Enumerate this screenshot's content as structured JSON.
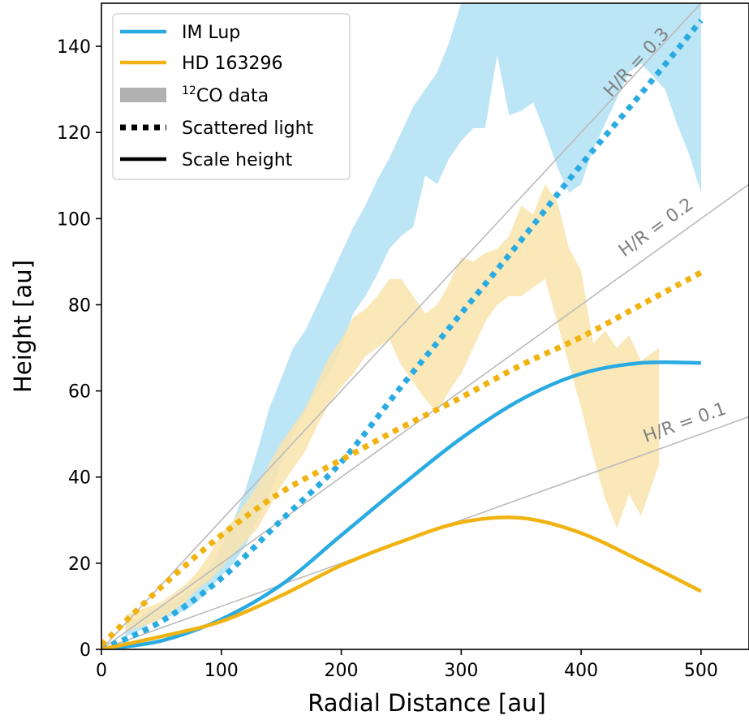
{
  "chart_data": {
    "type": "line",
    "xlabel": "Radial Distance [au]",
    "ylabel": "Height [au]",
    "xlim": [
      0,
      540
    ],
    "ylim": [
      0,
      150
    ],
    "xticks": [
      0,
      100,
      200,
      300,
      400,
      500
    ],
    "yticks": [
      0,
      20,
      40,
      60,
      80,
      100,
      120,
      140
    ],
    "grid": false,
    "legend_position": "upper-left",
    "colors": {
      "im_lup": "#29abe2",
      "hd163296": "#f0b311",
      "im_lup_band": "#b8e4f5",
      "hd_band": "#f9e4ad",
      "reference": "#bbbbbb",
      "reference_text": "#808080"
    },
    "legend": [
      {
        "label": "IM Lup",
        "kind": "line",
        "color": "#29abe2"
      },
      {
        "label": "HD 163296",
        "kind": "line",
        "color": "#f0b311"
      },
      {
        "label_sup": "12",
        "label": "CO data",
        "kind": "patch",
        "color": "#b0b0b0"
      },
      {
        "label": "Scattered light",
        "kind": "dotted",
        "color": "#000000"
      },
      {
        "label": "Scale height",
        "kind": "solid",
        "color": "#000000"
      }
    ],
    "reference_lines": [
      {
        "slope": 0.3,
        "label": "H/R = 0.3",
        "label_x": 425,
        "label_y": 128
      },
      {
        "slope": 0.2,
        "label": "H/R = 0.2",
        "label_x": 436,
        "label_y": 91
      },
      {
        "slope": 0.1,
        "label": "H/R = 0.1",
        "label_x": 454,
        "label_y": 48
      }
    ],
    "series": [
      {
        "name": "IM Lup",
        "kind": "scattered_light",
        "style": "dotted",
        "x": [
          0,
          50,
          100,
          150,
          200,
          250,
          300,
          350,
          400,
          450,
          500
        ],
        "y": [
          0,
          6.5,
          16.5,
          30,
          43.5,
          61,
          78,
          95,
          112.5,
          129,
          146
        ]
      },
      {
        "name": "HD 163296",
        "kind": "scattered_light",
        "style": "dotted",
        "x": [
          0,
          50,
          100,
          150,
          200,
          250,
          300,
          350,
          400,
          450,
          500
        ],
        "y": [
          1,
          14.5,
          26.5,
          36.5,
          44,
          51.5,
          58.5,
          66,
          72.5,
          80,
          87.5
        ]
      },
      {
        "name": "IM Lup",
        "kind": "scale_height",
        "style": "solid",
        "x": [
          0,
          50,
          100,
          150,
          200,
          250,
          300,
          350,
          400,
          450,
          500
        ],
        "y": [
          0,
          2,
          7,
          15,
          26.5,
          38,
          49,
          58,
          64,
          66.5,
          66.5
        ]
      },
      {
        "name": "HD 163296",
        "kind": "scale_height",
        "style": "solid",
        "x": [
          0,
          50,
          100,
          150,
          200,
          250,
          300,
          350,
          400,
          450,
          500
        ],
        "y": [
          0,
          3,
          6.5,
          12.5,
          19.5,
          25,
          29.5,
          30.5,
          27,
          20.5,
          13.5
        ]
      }
    ],
    "bands": [
      {
        "name": "IM Lup 12CO",
        "x": [
          20,
          30,
          40,
          50,
          60,
          70,
          80,
          90,
          100,
          110,
          120,
          130,
          140,
          150,
          160,
          170,
          180,
          190,
          200,
          210,
          220,
          230,
          240,
          250,
          260,
          270,
          280,
          290,
          300,
          310,
          320,
          330,
          340,
          350,
          360,
          370,
          380,
          390,
          400,
          410,
          420,
          430,
          440,
          450,
          460,
          470,
          480,
          490,
          500
        ],
        "lower": [
          3,
          4,
          6,
          7,
          8,
          9,
          11,
          14,
          17,
          20,
          24,
          30,
          36,
          43,
          50,
          55,
          60,
          64,
          70,
          78,
          82,
          87,
          93,
          96,
          98,
          110,
          108,
          114,
          118,
          121,
          121,
          138,
          124,
          125,
          127,
          120,
          112,
          106,
          108,
          116,
          122,
          128,
          134,
          136,
          133,
          130,
          122,
          115,
          106
        ],
        "upper": [
          6,
          7,
          9,
          10,
          11,
          13,
          15,
          19,
          24,
          30,
          37,
          46,
          56,
          63,
          70,
          74,
          80,
          86,
          92,
          98,
          103,
          109,
          114,
          120,
          126,
          130,
          134,
          141,
          150,
          150,
          150,
          150,
          150,
          150,
          150,
          150,
          150,
          150,
          150,
          150,
          150,
          150,
          150,
          150,
          150,
          150,
          150,
          150,
          150
        ]
      },
      {
        "name": "HD 163296 12CO",
        "x": [
          20,
          30,
          40,
          50,
          60,
          70,
          80,
          90,
          100,
          110,
          120,
          130,
          140,
          150,
          160,
          170,
          180,
          190,
          200,
          210,
          220,
          230,
          240,
          250,
          260,
          270,
          280,
          290,
          300,
          310,
          320,
          330,
          340,
          350,
          360,
          370,
          380,
          390,
          400,
          410,
          420,
          430,
          440,
          450,
          460,
          465
        ],
        "lower": [
          4,
          5,
          6,
          7,
          9,
          11,
          14,
          16,
          19,
          22,
          25,
          28,
          33,
          38,
          42,
          46,
          52,
          57,
          61,
          64,
          68,
          70,
          72,
          66,
          62,
          58,
          55,
          60,
          64,
          70,
          76,
          80,
          82,
          82,
          84,
          86,
          76,
          66,
          56,
          45,
          35,
          28,
          36,
          31,
          39,
          43
        ],
        "upper": [
          8,
          9,
          10,
          11,
          13,
          15,
          18,
          22,
          27,
          30,
          34,
          38,
          43,
          48,
          52,
          56,
          62,
          68,
          72,
          77,
          79,
          82,
          86,
          86,
          82,
          78,
          80,
          85,
          91,
          90,
          92,
          93,
          96,
          103,
          101,
          108,
          104,
          93,
          88,
          71,
          74,
          70,
          73,
          67,
          69,
          70
        ]
      }
    ]
  }
}
